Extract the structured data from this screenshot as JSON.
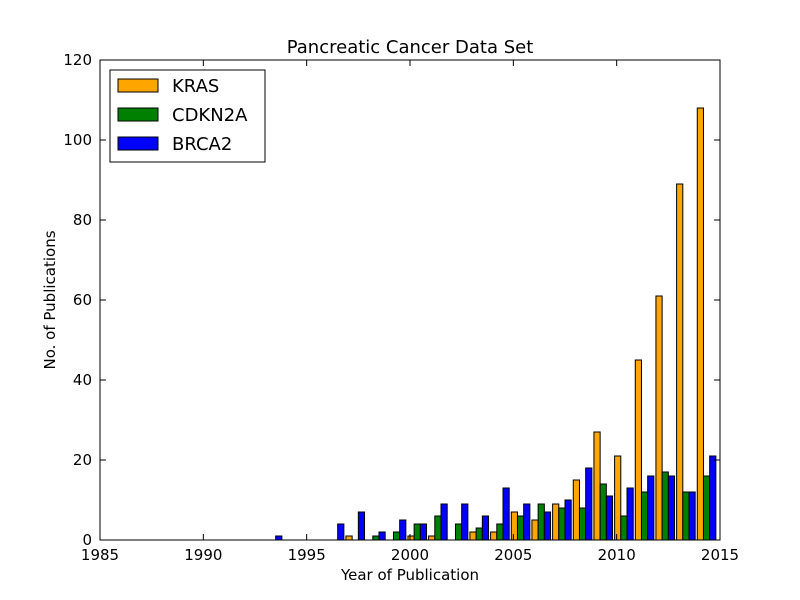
{
  "chart_data": {
    "type": "bar",
    "title": "Pancreatic Cancer Data Set",
    "xlabel": "Year of Publication",
    "ylabel": "No. of Publications",
    "xlim": [
      1985,
      2015
    ],
    "ylim": [
      0,
      120
    ],
    "xticks": [
      1985,
      1990,
      1995,
      2000,
      2005,
      2010,
      2015
    ],
    "yticks": [
      0,
      20,
      40,
      60,
      80,
      100,
      120
    ],
    "grid": false,
    "legend_position": "top-left",
    "x": [
      1993,
      1994,
      1995,
      1996,
      1997,
      1998,
      1999,
      2000,
      2001,
      2002,
      2003,
      2004,
      2005,
      2006,
      2007,
      2008,
      2009,
      2010,
      2011,
      2012,
      2013,
      2014
    ],
    "series": [
      {
        "name": "KRAS",
        "color": "#ffa500",
        "values": [
          0,
          0,
          0,
          0,
          1,
          0,
          0,
          1,
          1,
          0,
          2,
          2,
          7,
          5,
          9,
          15,
          27,
          21,
          45,
          61,
          89,
          108
        ]
      },
      {
        "name": "CDKN2A",
        "color": "#008000",
        "values": [
          0,
          0,
          0,
          0,
          0,
          1,
          2,
          4,
          6,
          4,
          3,
          4,
          6,
          9,
          8,
          8,
          14,
          6,
          12,
          17,
          12,
          16
        ]
      },
      {
        "name": "BRCA2",
        "color": "#0000ff",
        "values": [
          1,
          0,
          0,
          4,
          7,
          2,
          5,
          4,
          9,
          9,
          6,
          13,
          9,
          7,
          10,
          18,
          11,
          13,
          16,
          16,
          12,
          21
        ]
      }
    ]
  }
}
